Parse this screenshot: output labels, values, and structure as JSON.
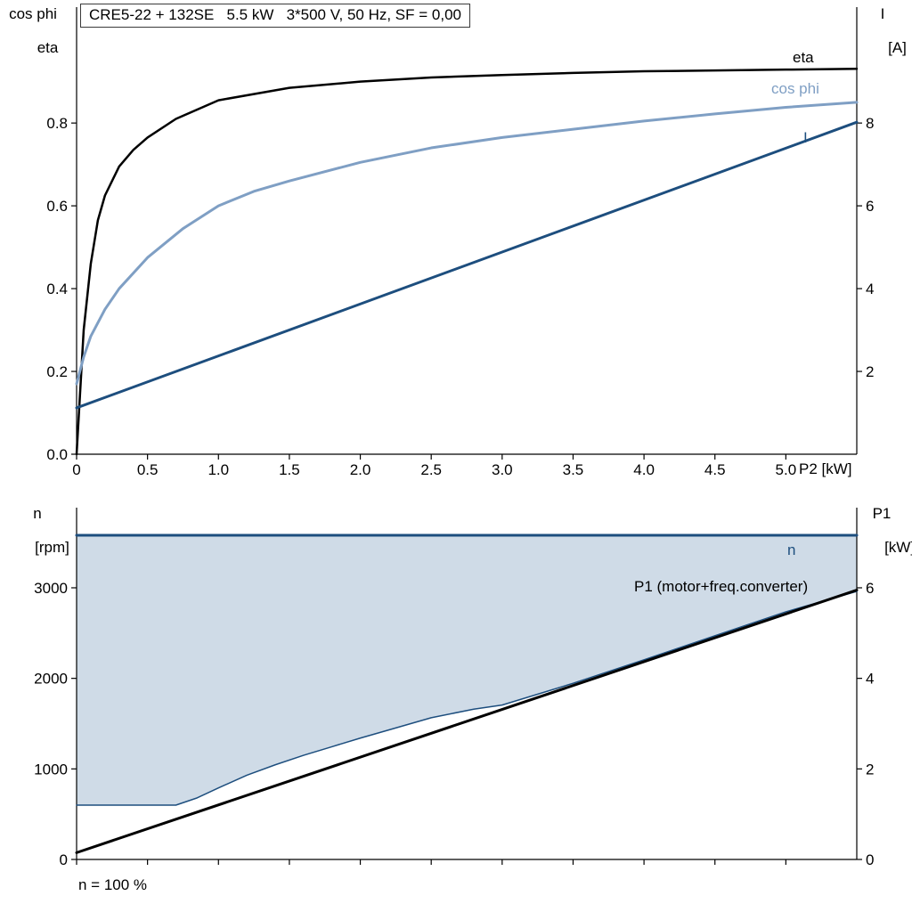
{
  "title_box": "CRE5-22 + 132SE   5.5 kW   3*500 V, 50 Hz, SF = 0,00",
  "colors": {
    "eta": "#000000",
    "cos_phi": "#7f9fc4",
    "current": "#1d4e7e",
    "n_line": "#1d4e7e",
    "p1_line": "#000000",
    "area_fill": "#cfdbe7",
    "axis": "#000000"
  },
  "top_chart": {
    "left_axis_line1": "cos phi",
    "left_axis_line2": "eta",
    "right_axis_line1": "I",
    "right_axis_line2": "[A]",
    "x_axis_label": "P2 [kW]",
    "curve_labels": {
      "eta": "eta",
      "cos_phi": "cos phi",
      "current": "I"
    }
  },
  "bottom_chart": {
    "left_axis_line1": "n",
    "left_axis_line2": "[rpm]",
    "right_axis_line1": "P1",
    "right_axis_line2": "[kW]",
    "curve_labels": {
      "n": "n",
      "p1": "P1 (motor+freq.converter)"
    },
    "footnote": "n = 100 %"
  },
  "chart_data": [
    {
      "type": "line",
      "title": "CRE5-22 + 132SE   5.5 kW   3*500 V, 50 Hz, SF = 0,00",
      "xlabel": "P2 [kW]",
      "ylabel_left": "cos phi / eta",
      "ylabel_right": "I [A]",
      "xlim": [
        0,
        5.5
      ],
      "ylim_left": [
        0,
        1.08
      ],
      "ylim_right": [
        0,
        10.8
      ],
      "grid": false,
      "xticks": {
        "values": [
          0,
          0.5,
          1.0,
          1.5,
          2.0,
          2.5,
          3.0,
          3.5,
          4.0,
          4.5,
          5.0
        ],
        "labels": [
          "0",
          "0.5",
          "1.0",
          "1.5",
          "2.0",
          "2.5",
          "3.0",
          "3.5",
          "4.0",
          "4.5",
          "5.0"
        ]
      },
      "yticks_left": {
        "values": [
          0.0,
          0.2,
          0.4,
          0.6,
          0.8
        ],
        "labels": [
          "0.0",
          "0.2",
          "0.4",
          "0.6",
          "0.8"
        ]
      },
      "yticks_right": {
        "values": [
          2,
          4,
          6,
          8
        ],
        "labels": [
          "2",
          "4",
          "6",
          "8"
        ]
      },
      "series": [
        {
          "name": "eta",
          "axis": "left",
          "color_key": "eta",
          "width": 2.5,
          "x": [
            0,
            0.05,
            0.1,
            0.15,
            0.2,
            0.3,
            0.4,
            0.5,
            0.7,
            1.0,
            1.5,
            2.0,
            2.5,
            3.0,
            3.5,
            4.0,
            4.5,
            5.0,
            5.5
          ],
          "y": [
            0,
            0.3,
            0.46,
            0.565,
            0.625,
            0.695,
            0.735,
            0.765,
            0.81,
            0.855,
            0.885,
            0.9,
            0.91,
            0.916,
            0.921,
            0.925,
            0.927,
            0.929,
            0.931
          ]
        },
        {
          "name": "cos phi",
          "axis": "left",
          "color_key": "cos_phi",
          "width": 3,
          "x": [
            0,
            0.05,
            0.1,
            0.2,
            0.3,
            0.5,
            0.75,
            1.0,
            1.25,
            1.5,
            2.0,
            2.5,
            3.0,
            3.5,
            4.0,
            4.5,
            5.0,
            5.5
          ],
          "y": [
            0.17,
            0.235,
            0.285,
            0.35,
            0.4,
            0.475,
            0.545,
            0.6,
            0.635,
            0.66,
            0.705,
            0.74,
            0.765,
            0.785,
            0.805,
            0.822,
            0.838,
            0.85
          ]
        },
        {
          "name": "I",
          "axis": "right",
          "color_key": "current",
          "width": 3,
          "x": [
            0,
            1.1,
            2.2,
            3.3,
            4.4,
            5.5
          ],
          "y": [
            1.12,
            2.5,
            3.88,
            5.26,
            6.64,
            8.02
          ]
        }
      ]
    },
    {
      "type": "line+area",
      "title": "",
      "xlabel": "",
      "ylabel_left": "n [rpm]",
      "ylabel_right": "P1 [kW]",
      "xlim": [
        0,
        5.5
      ],
      "ylim_left": [
        0,
        3885
      ],
      "ylim_right": [
        0,
        7.77
      ],
      "grid": false,
      "xticks": {
        "values": [
          0,
          0.5,
          1.0,
          1.5,
          2.0,
          2.5,
          3.0,
          3.5,
          4.0,
          4.5,
          5.0
        ],
        "labels": []
      },
      "yticks_left": {
        "values": [
          0,
          1000,
          2000,
          3000
        ],
        "labels": [
          "0",
          "1000",
          "2000",
          "3000"
        ]
      },
      "yticks_right": {
        "values": [
          0,
          2,
          4,
          6
        ],
        "labels": [
          "0",
          "2",
          "4",
          "6"
        ]
      },
      "area": {
        "axis": "left",
        "color_key": "area_fill",
        "top": 3580,
        "x": [
          0,
          0.7,
          0.85,
          1.0,
          1.2,
          1.4,
          1.6,
          1.8,
          2.0,
          2.2,
          2.5,
          2.8,
          3.0,
          3.5,
          4.0,
          4.5,
          5.0,
          5.5
        ],
        "y": [
          600,
          600,
          680,
          790,
          930,
          1045,
          1150,
          1245,
          1340,
          1430,
          1565,
          1660,
          1705,
          1945,
          2205,
          2470,
          2735,
          2960
        ]
      },
      "series": [
        {
          "name": "speed range lower boundary",
          "axis": "left",
          "color_key": "n_line",
          "width": 1.5,
          "x": [
            0,
            0.7,
            0.85,
            1.0,
            1.2,
            1.4,
            1.6,
            1.8,
            2.0,
            2.2,
            2.5,
            2.8,
            3.0,
            3.5,
            4.0,
            4.5,
            5.0,
            5.5
          ],
          "y": [
            600,
            600,
            680,
            790,
            930,
            1045,
            1150,
            1245,
            1340,
            1430,
            1565,
            1660,
            1705,
            1945,
            2205,
            2470,
            2735,
            2960
          ]
        },
        {
          "name": "n",
          "axis": "left",
          "color_key": "n_line",
          "width": 3,
          "x": [
            0,
            5.5
          ],
          "y": [
            3580,
            3580
          ]
        },
        {
          "name": "P1 (motor+freq.converter)",
          "axis": "right",
          "color_key": "p1_line",
          "width": 3,
          "x": [
            0,
            5.5
          ],
          "y": [
            0.15,
            5.95
          ]
        }
      ]
    }
  ]
}
